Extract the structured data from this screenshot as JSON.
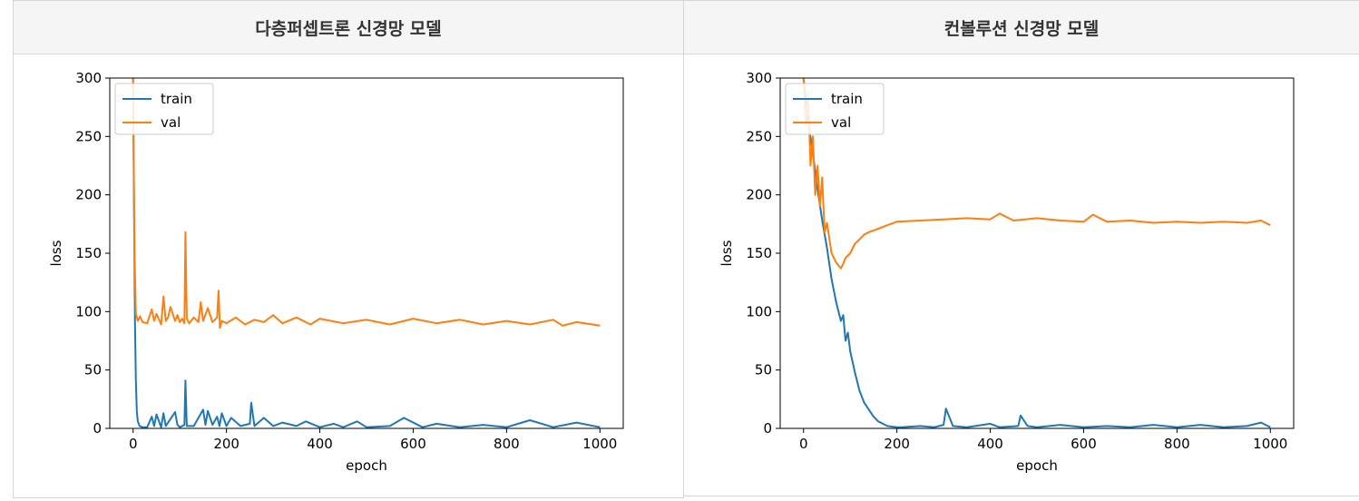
{
  "table": {
    "headers": [
      "다층퍼셉트론 신경망 모델",
      "컨볼루션 신경망 모델"
    ]
  },
  "chart_data": [
    {
      "type": "line",
      "xlabel": "epoch",
      "ylabel": "loss",
      "xlim": [
        -50,
        1050
      ],
      "ylim": [
        0,
        300
      ],
      "xticks": [
        0,
        200,
        400,
        600,
        800,
        1000
      ],
      "yticks": [
        0,
        50,
        100,
        150,
        200,
        250,
        300
      ],
      "legend_position": "upper left",
      "series": [
        {
          "name": "train",
          "color": "#1f77b4",
          "x": [
            0,
            2,
            4,
            6,
            8,
            10,
            14,
            20,
            30,
            40,
            45,
            50,
            60,
            65,
            70,
            80,
            90,
            95,
            100,
            110,
            112,
            115,
            130,
            150,
            155,
            160,
            170,
            180,
            185,
            190,
            200,
            210,
            230,
            250,
            253,
            260,
            280,
            300,
            320,
            350,
            370,
            400,
            430,
            450,
            480,
            500,
            550,
            580,
            620,
            650,
            700,
            750,
            800,
            850,
            900,
            950,
            1000
          ],
          "y": [
            300,
            180,
            90,
            40,
            15,
            6,
            2,
            1,
            1,
            10,
            2,
            12,
            1,
            13,
            2,
            8,
            14,
            3,
            1,
            3,
            41,
            2,
            2,
            16,
            3,
            15,
            3,
            10,
            2,
            13,
            2,
            9,
            2,
            4,
            22,
            2,
            9,
            2,
            5,
            2,
            6,
            1,
            4,
            1,
            6,
            1,
            2,
            9,
            1,
            4,
            1,
            3,
            1,
            7,
            1,
            5,
            1
          ]
        },
        {
          "name": "val",
          "color": "#ff7f0e",
          "x": [
            0,
            3,
            6,
            10,
            15,
            20,
            30,
            40,
            45,
            50,
            60,
            65,
            70,
            75,
            80,
            90,
            95,
            100,
            105,
            110,
            112,
            115,
            120,
            130,
            140,
            145,
            150,
            160,
            170,
            180,
            183,
            186,
            190,
            200,
            220,
            240,
            260,
            280,
            300,
            320,
            350,
            380,
            400,
            450,
            500,
            550,
            600,
            650,
            700,
            750,
            800,
            850,
            900,
            920,
            950,
            1000
          ],
          "y": [
            300,
            150,
            98,
            92,
            96,
            91,
            90,
            102,
            92,
            98,
            89,
            113,
            92,
            95,
            104,
            92,
            97,
            91,
            94,
            90,
            168,
            94,
            90,
            95,
            91,
            108,
            92,
            103,
            91,
            95,
            118,
            86,
            92,
            90,
            95,
            89,
            93,
            91,
            97,
            90,
            95,
            89,
            94,
            90,
            93,
            89,
            94,
            90,
            93,
            89,
            92,
            89,
            93,
            88,
            91,
            88
          ]
        }
      ]
    },
    {
      "type": "line",
      "xlabel": "epoch",
      "ylabel": "loss",
      "xlim": [
        -50,
        1050
      ],
      "ylim": [
        0,
        300
      ],
      "xticks": [
        0,
        200,
        400,
        600,
        800,
        1000
      ],
      "yticks": [
        0,
        50,
        100,
        150,
        200,
        250,
        300
      ],
      "legend_position": "upper left",
      "series": [
        {
          "name": "train",
          "color": "#1f77b4",
          "x": [
            0,
            10,
            20,
            30,
            40,
            50,
            60,
            70,
            80,
            85,
            90,
            95,
            100,
            110,
            120,
            130,
            140,
            150,
            160,
            170,
            180,
            190,
            200,
            210,
            250,
            280,
            300,
            305,
            320,
            350,
            400,
            420,
            460,
            465,
            480,
            500,
            550,
            600,
            650,
            700,
            750,
            800,
            850,
            900,
            950,
            980,
            1000
          ],
          "y": [
            300,
            262,
            236,
            205,
            178,
            155,
            128,
            108,
            92,
            97,
            75,
            82,
            66,
            48,
            32,
            22,
            16,
            10,
            6,
            4,
            2,
            1.5,
            1,
            1,
            2,
            1,
            3,
            17,
            2,
            1,
            4,
            1,
            2,
            11,
            2,
            1,
            3,
            1,
            2,
            1,
            3,
            1,
            3,
            1,
            2,
            5,
            1
          ]
        },
        {
          "name": "val",
          "color": "#ff7f0e",
          "x": [
            0,
            5,
            10,
            15,
            20,
            25,
            30,
            35,
            40,
            45,
            50,
            60,
            70,
            80,
            85,
            90,
            100,
            110,
            120,
            130,
            140,
            160,
            180,
            200,
            250,
            300,
            350,
            400,
            420,
            450,
            500,
            550,
            600,
            620,
            650,
            700,
            750,
            800,
            850,
            900,
            950,
            980,
            1000
          ],
          "y": [
            300,
            260,
            285,
            225,
            250,
            200,
            225,
            190,
            215,
            168,
            176,
            150,
            142,
            137,
            141,
            146,
            150,
            158,
            162,
            166,
            168,
            171,
            174,
            177,
            178,
            179,
            180,
            179,
            184,
            178,
            180,
            178,
            177,
            183,
            177,
            178,
            176,
            177,
            176,
            177,
            176,
            178,
            174
          ]
        }
      ]
    }
  ]
}
